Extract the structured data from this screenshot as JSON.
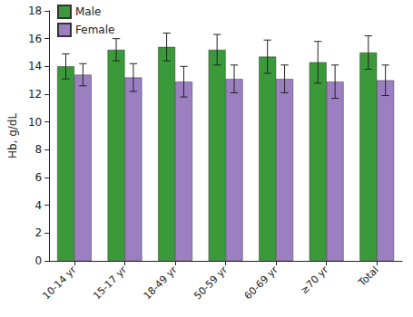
{
  "chart_data": {
    "type": "bar",
    "y_label": "Hb, g/dL",
    "categories": [
      "10-14 yr",
      "15-17 yr",
      "18-49 yr",
      "50-59 yr",
      "60-69 yr",
      "≥70 yr",
      "Total"
    ],
    "series": [
      {
        "name": "Male",
        "color": "#3a9a3a",
        "values": [
          14.0,
          15.2,
          15.4,
          15.2,
          14.7,
          14.3,
          15.0
        ],
        "errors": [
          0.9,
          0.8,
          1.0,
          1.1,
          1.2,
          1.5,
          1.2
        ]
      },
      {
        "name": "Female",
        "color": "#9b7fc1",
        "values": [
          13.4,
          13.2,
          12.9,
          13.1,
          13.1,
          12.9,
          13.0
        ],
        "errors": [
          0.8,
          1.0,
          1.1,
          1.0,
          1.0,
          1.2,
          1.1
        ]
      }
    ],
    "ylim": [
      0,
      18
    ],
    "yticks": [
      0,
      2,
      4,
      6,
      8,
      10,
      12,
      14,
      16,
      18
    ],
    "grid": false,
    "legend": "upper left"
  }
}
